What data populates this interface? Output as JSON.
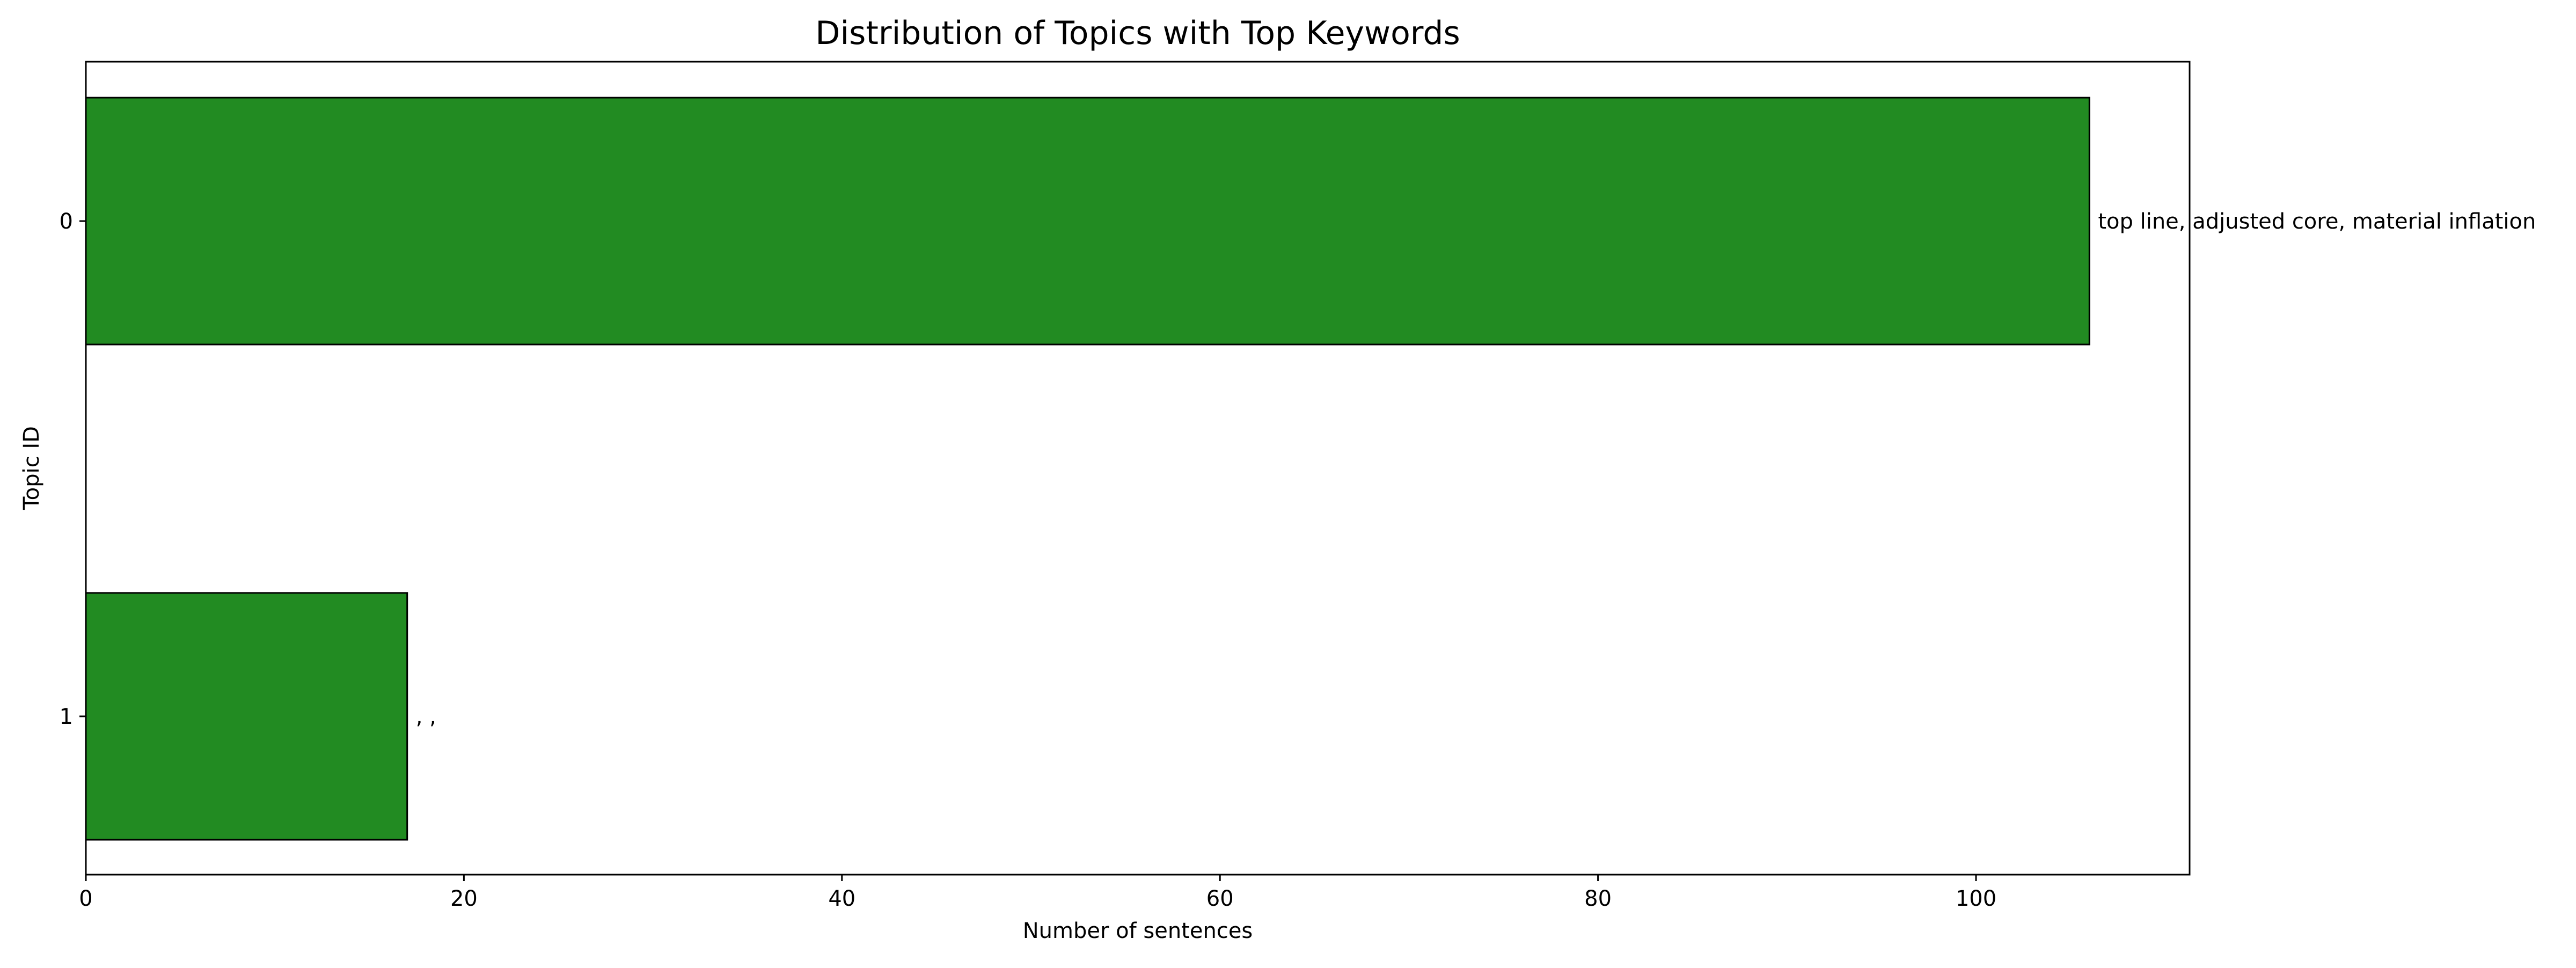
{
  "chart_data": {
    "type": "bar",
    "orientation": "horizontal",
    "title": "Distribution of Topics with Top Keywords",
    "xlabel": "Number of sentences",
    "ylabel": "Topic ID",
    "categories": [
      "0",
      "1"
    ],
    "values": [
      106,
      17
    ],
    "bar_labels": [
      "top line, adjusted core, material inflation",
      ", ,"
    ],
    "xlim": [
      0,
      111.3
    ],
    "xticks": [
      "0",
      "20",
      "40",
      "60",
      "80",
      "100"
    ],
    "grid": false,
    "legend": "none",
    "bar_color": "#228b22",
    "edge_color": "#000000"
  }
}
